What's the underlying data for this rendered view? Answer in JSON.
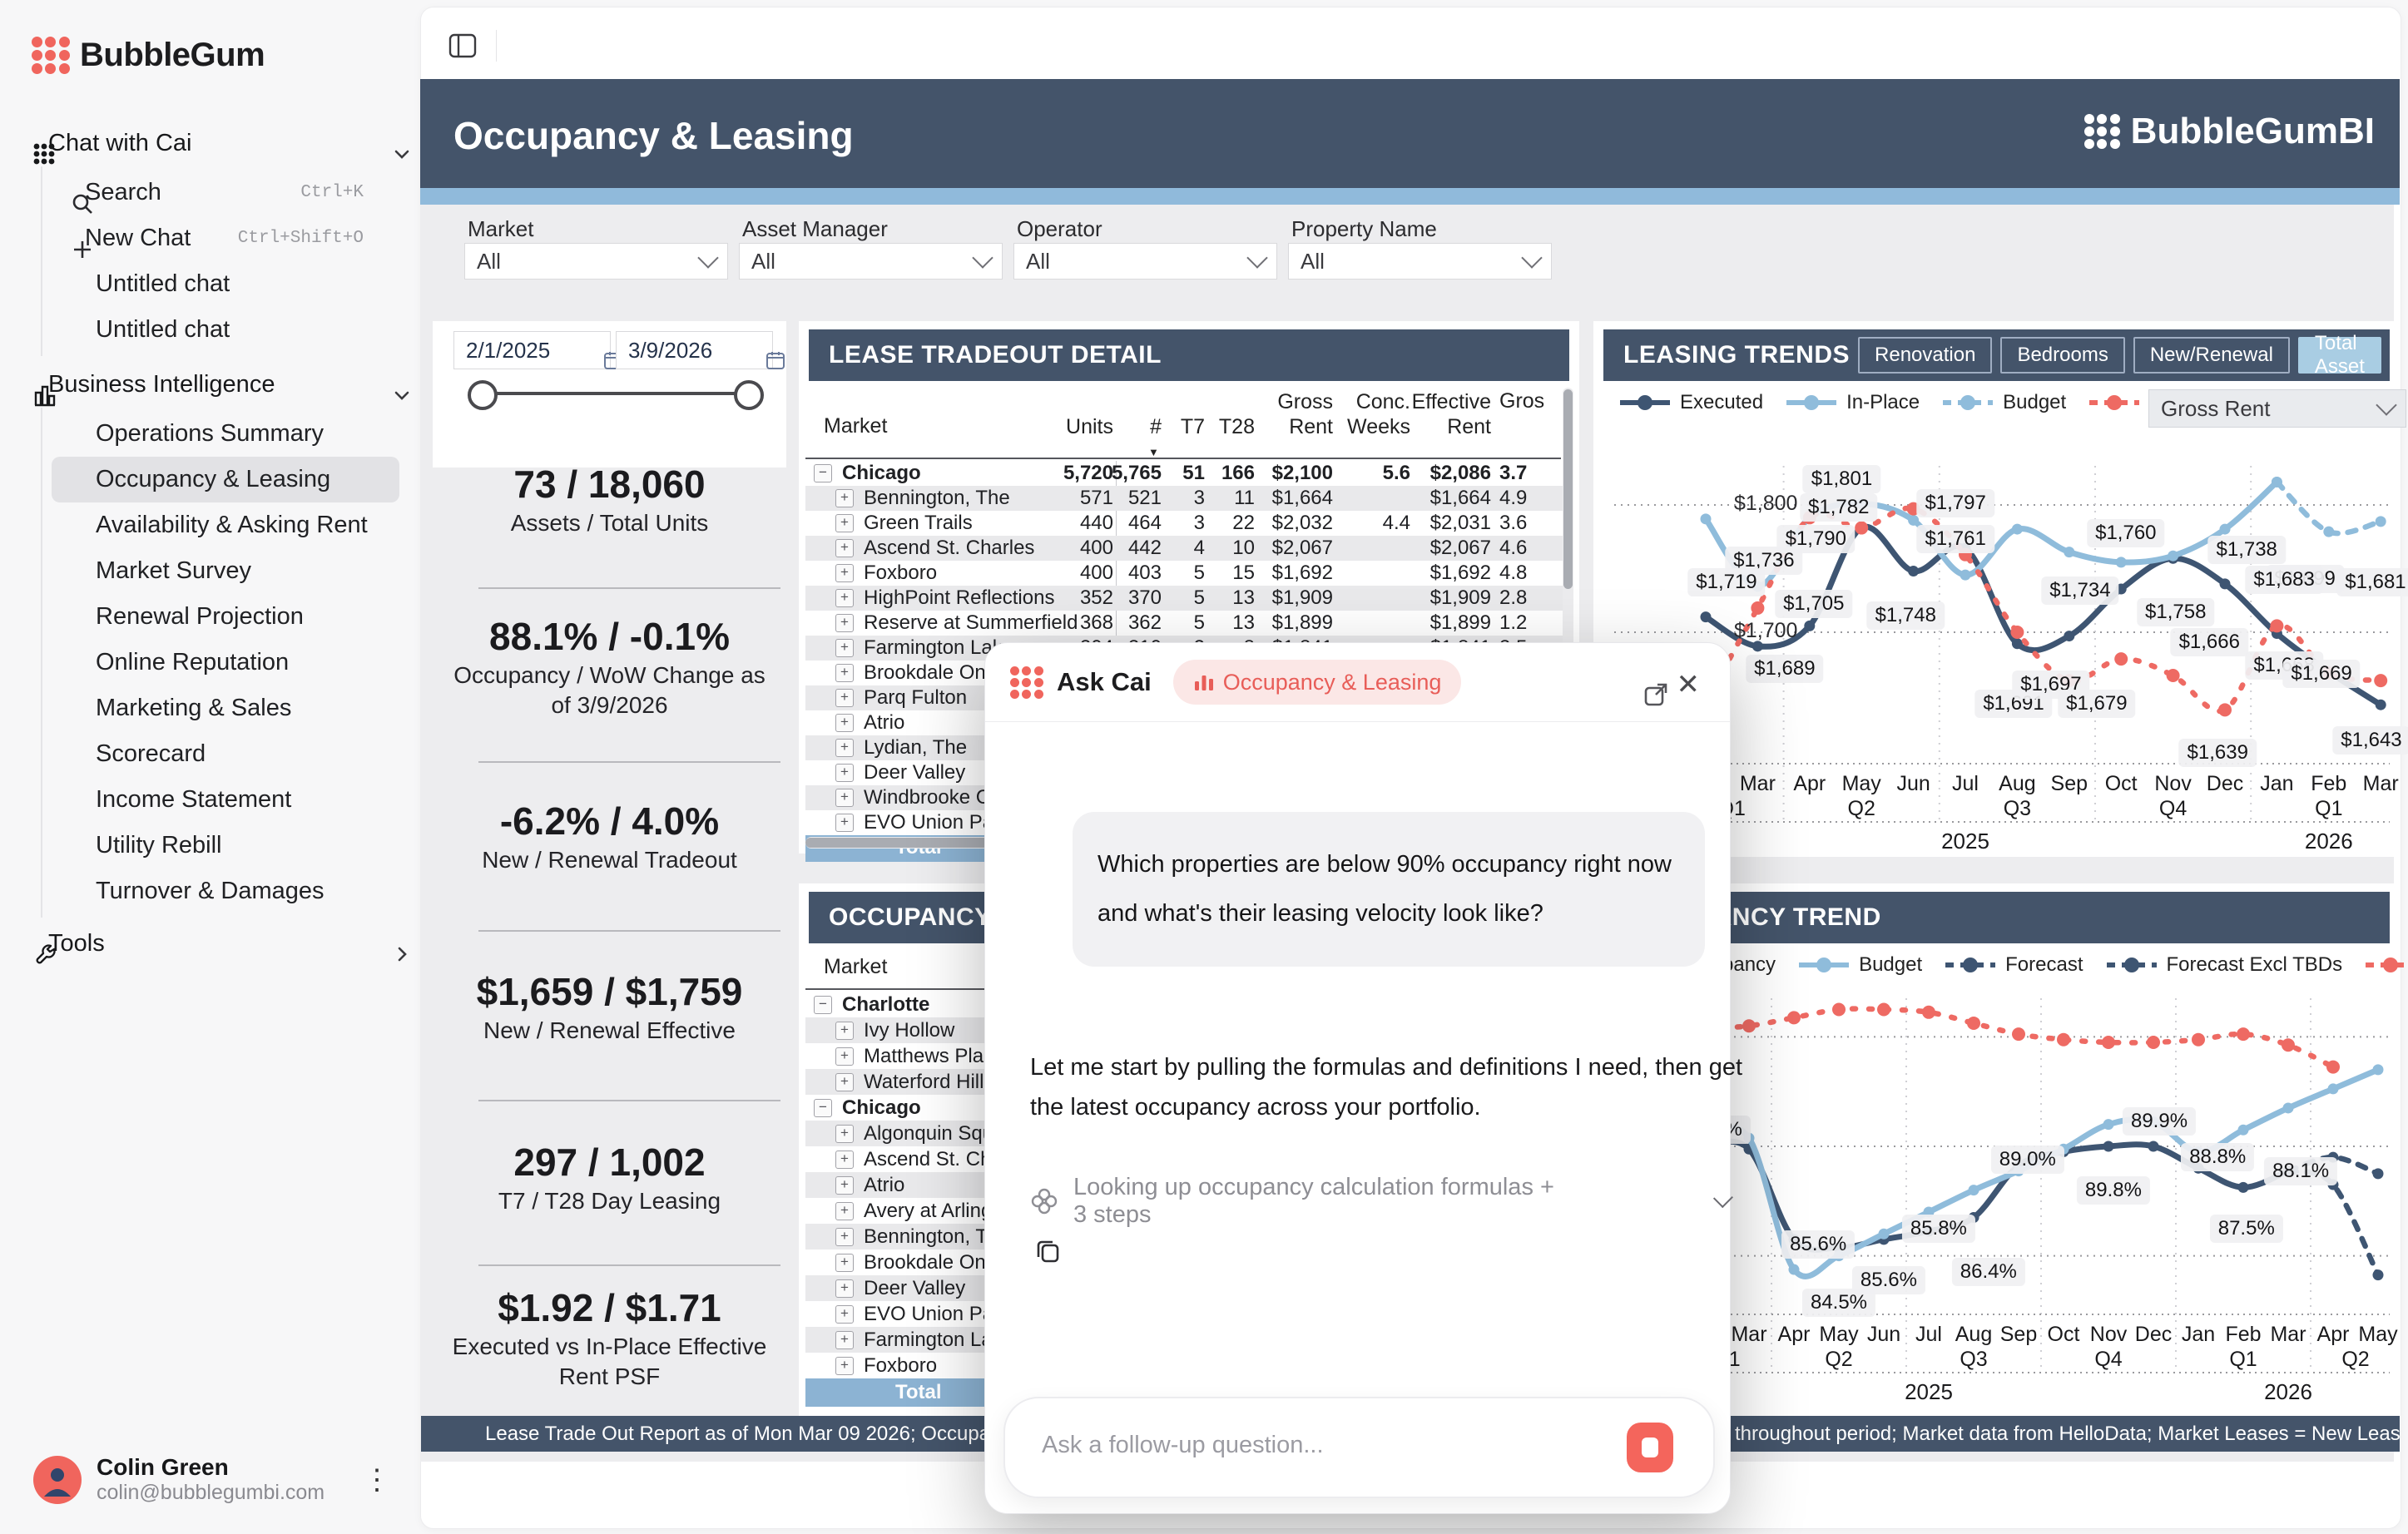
{
  "colors": {
    "navy": "#44546A",
    "navy_line": "#3E5572",
    "light_blue": "#8FBCDB",
    "strip_blue": "#90BADB",
    "red": "#EE6A63",
    "brand_red": "#F0655D",
    "total_row": "#8CB3D3",
    "active_toggle": "#A9CDE3"
  },
  "sidebar": {
    "logo_text": "BubbleGum",
    "sections": [
      {
        "label": "Chat with Cai",
        "icon": "cai-dots-icon",
        "chevron": "down",
        "items": [
          {
            "label": "Search",
            "icon": "search",
            "shortcut": "Ctrl+K"
          },
          {
            "label": "New Chat",
            "icon": "plus",
            "shortcut": "Ctrl+Shift+O"
          },
          {
            "label": "Untitled chat"
          },
          {
            "label": "Untitled chat"
          }
        ]
      },
      {
        "label": "Business Intelligence",
        "icon": "bar-chart-icon",
        "chevron": "down",
        "items": [
          {
            "label": "Operations Summary"
          },
          {
            "label": "Occupancy & Leasing",
            "active": true
          },
          {
            "label": "Availability & Asking Rent"
          },
          {
            "label": "Market Survey"
          },
          {
            "label": "Renewal Projection"
          },
          {
            "label": "Online Reputation"
          },
          {
            "label": "Marketing & Sales"
          },
          {
            "label": "Scorecard"
          },
          {
            "label": "Income Statement"
          },
          {
            "label": "Utility Rebill"
          },
          {
            "label": "Turnover & Damages"
          }
        ]
      },
      {
        "label": "Tools",
        "icon": "wrench-icon",
        "chevron": "right",
        "items": []
      }
    ],
    "user": {
      "name": "Colin Green",
      "email": "colin@bubblegumbi.com"
    }
  },
  "header": {
    "title": "Occupancy & Leasing",
    "brand": "BubbleGumBI"
  },
  "filters": [
    {
      "label": "Market",
      "value": "All"
    },
    {
      "label": "Asset Manager",
      "value": "All"
    },
    {
      "label": "Operator",
      "value": "All"
    },
    {
      "label": "Property Name",
      "value": "All"
    }
  ],
  "kpi_panel": {
    "date_from": "2/1/2025",
    "date_to": "3/9/2026",
    "items": [
      {
        "value": "73 / 18,060",
        "label": "Assets / Total Units"
      },
      {
        "value": "88.1% / -0.1%",
        "label": "Occupancy / WoW Change as of 3/9/2026"
      },
      {
        "value": "-6.2% / 4.0%",
        "label": "New / Renewal Tradeout"
      },
      {
        "value": "$1,659 / $1,759",
        "label": "New / Renewal Effective"
      },
      {
        "value": "297 / 1,002",
        "label": "T7 / T28 Day Leasing"
      },
      {
        "value": "$1.92 / $1.71",
        "label": "Executed vs In-Place Effective Rent PSF"
      }
    ]
  },
  "lease_table": {
    "title": "LEASE TRADEOUT DETAIL",
    "columns": [
      "Market",
      "Units",
      "#",
      "T7",
      "T28",
      "Gross Rent",
      "Conc. Weeks",
      "Effective Rent",
      "Gros"
    ],
    "sort_column": "#",
    "rows": [
      {
        "name": "Chicago",
        "type": "group",
        "cells": [
          "5,720",
          "5,765",
          "51",
          "166",
          "$2,100",
          "5.6",
          "$2,086",
          "3.7"
        ]
      },
      {
        "name": "Bennington, The",
        "cells": [
          "571",
          "521",
          "3",
          "11",
          "$1,664",
          "",
          "$1,664",
          "4.9"
        ]
      },
      {
        "name": "Green Trails",
        "cells": [
          "440",
          "464",
          "3",
          "22",
          "$2,032",
          "4.4",
          "$2,031",
          "3.6"
        ]
      },
      {
        "name": "Ascend St. Charles",
        "cells": [
          "400",
          "442",
          "4",
          "10",
          "$2,067",
          "",
          "$2,067",
          "4.6"
        ]
      },
      {
        "name": "Foxboro",
        "cells": [
          "400",
          "403",
          "5",
          "15",
          "$1,692",
          "",
          "$1,692",
          "4.8"
        ]
      },
      {
        "name": "HighPoint Reflections",
        "cells": [
          "352",
          "370",
          "5",
          "13",
          "$1,909",
          "",
          "$1,909",
          "2.8"
        ]
      },
      {
        "name": "Reserve at Summerfield",
        "cells": [
          "368",
          "362",
          "5",
          "13",
          "$1,899",
          "",
          "$1,899",
          "1.2"
        ]
      },
      {
        "name": "Farmington Lakes",
        "cells": [
          "304",
          "310",
          "2",
          "8",
          "$1,841",
          "",
          "$1,841",
          "3.5"
        ]
      },
      {
        "name": "Brookdale On th",
        "cells": [
          "",
          "",
          "",
          "",
          "",
          "",
          "",
          ""
        ]
      },
      {
        "name": "Parq Fulton",
        "cells": [
          "",
          "",
          "",
          "",
          "",
          "",
          "",
          ""
        ]
      },
      {
        "name": "Atrio",
        "cells": [
          "",
          "",
          "",
          "",
          "",
          "",
          "",
          ""
        ]
      },
      {
        "name": "Lydian, The",
        "cells": [
          "",
          "",
          "",
          "",
          "",
          "",
          "",
          ""
        ]
      },
      {
        "name": "Deer Valley",
        "cells": [
          "",
          "",
          "",
          "",
          "",
          "",
          "",
          ""
        ]
      },
      {
        "name": "Windbrooke Cro",
        "cells": [
          "",
          "",
          "",
          "",
          "",
          "",
          "",
          ""
        ]
      },
      {
        "name": "EVO Union Park",
        "cells": [
          "",
          "",
          "",
          "",
          "",
          "",
          "",
          ""
        ]
      },
      {
        "name": "Total",
        "type": "total",
        "cells": [
          "",
          "",
          "",
          "",
          "",
          "",
          "",
          ""
        ]
      }
    ]
  },
  "occupancy_table": {
    "title": "OCCUPANCY",
    "column_header": "Market",
    "rows": [
      {
        "name": "Charlotte",
        "type": "group"
      },
      {
        "name": "Ivy Hollow"
      },
      {
        "name": "Matthews Place"
      },
      {
        "name": "Waterford Hills"
      },
      {
        "name": "Chicago",
        "type": "group"
      },
      {
        "name": "Algonquin Squa"
      },
      {
        "name": "Ascend St. Cha"
      },
      {
        "name": "Atrio"
      },
      {
        "name": "Avery at Arlingto"
      },
      {
        "name": "Bennington, Th"
      },
      {
        "name": "Brookdale On t"
      },
      {
        "name": "Deer Valley"
      },
      {
        "name": "EVO Union Par"
      },
      {
        "name": "Farmington Lak"
      },
      {
        "name": "Foxboro"
      },
      {
        "name": "Total",
        "type": "total"
      }
    ]
  },
  "chart_data": [
    {
      "type": "line",
      "title": "LEASING TRENDS",
      "toggles": [
        "Renovation",
        "Bedrooms",
        "New/Renewal",
        "Total Asset"
      ],
      "active_toggle": "Total Asset",
      "metric_select": "Gross Rent",
      "legend": [
        {
          "label": "Executed",
          "color": "#3E5572",
          "style": "solid"
        },
        {
          "label": "In-Place",
          "color": "#8FBCDB",
          "style": "solid"
        },
        {
          "label": "Budget",
          "color": "#8FBCDB",
          "style": "dashed"
        },
        {
          "label": "Market",
          "color": "#EE6A63",
          "style": "dashed"
        }
      ],
      "x": [
        "Feb",
        "Mar",
        "Apr",
        "May",
        "Jun",
        "Jul",
        "Aug",
        "Sep",
        "Oct",
        "Nov",
        "Dec",
        "Jan",
        "Feb",
        "Mar"
      ],
      "quarters": [
        {
          "label": "Q1",
          "center_i": 0.5
        },
        {
          "label": "Q2",
          "center_i": 3
        },
        {
          "label": "Q3",
          "center_i": 6
        },
        {
          "label": "Q4",
          "center_i": 9
        },
        {
          "label": "Q1",
          "center_i": 12
        }
      ],
      "quarter_breaks_i": [
        1.5,
        4.5,
        7.5,
        10.5
      ],
      "years": [
        {
          "label": "2025",
          "center_i": 5
        },
        {
          "label": "2026",
          "center_i": 12
        }
      ],
      "ylim": [
        1600,
        1840
      ],
      "grid": true,
      "ylabels": [
        {
          "text": "$1,800",
          "value": 1800
        },
        {
          "text": "$1,700",
          "value": 1700
        }
      ],
      "series": [
        {
          "name": "Executed",
          "color": "#3E5572",
          "style": "solid",
          "values": [
            1712,
            1689,
            1705,
            1782,
            1748,
            1766,
            1691,
            1697,
            1734,
            1758,
            1738,
            1699,
            1669,
            1643
          ]
        },
        {
          "name": "In-Place",
          "color": "#8FBCDB",
          "style": "solid",
          "values": [
            1789,
            1736,
            1790,
            1801,
            1788,
            1745,
            1781,
            1763,
            1755,
            1760,
            1781,
            1818,
            null,
            null
          ]
        },
        {
          "name": "Budget",
          "color": "#8FBCDB",
          "style": "dashed",
          "values": [
            null,
            null,
            null,
            null,
            null,
            null,
            null,
            null,
            null,
            null,
            null,
            1818,
            1779,
            1787
          ]
        },
        {
          "name": "Market",
          "color": "#EE6A63",
          "style": "dashed",
          "values": [
            1645,
            1719,
            1790,
            1782,
            1797,
            1761,
            1700,
            1662,
            1679,
            1666,
            1639,
            1705,
            1668,
            1662
          ]
        }
      ],
      "point_labels": [
        {
          "text": "$1,801",
          "i": 2.62,
          "v": 1820
        },
        {
          "text": "$1,782",
          "i": 2.56,
          "v": 1798
        },
        {
          "text": "$1,797",
          "i": 4.81,
          "v": 1801
        },
        {
          "text": "$1,761",
          "i": 4.81,
          "v": 1773
        },
        {
          "text": "$1,790",
          "i": 2.12,
          "v": 1773
        },
        {
          "text": "$1,736",
          "i": 1.12,
          "v": 1756
        },
        {
          "text": "$1,719",
          "i": 0.4,
          "v": 1739
        },
        {
          "text": "$1,705",
          "i": 2.08,
          "v": 1722
        },
        {
          "text": "$1,748",
          "i": 3.85,
          "v": 1713
        },
        {
          "text": "$1,689",
          "i": 1.52,
          "v": 1671
        },
        {
          "text": "$1,691",
          "i": 5.93,
          "v": 1644
        },
        {
          "text": "$1,697",
          "i": 6.65,
          "v": 1659
        },
        {
          "text": "$1,734",
          "i": 7.21,
          "v": 1733
        },
        {
          "text": "$1,760",
          "i": 8.09,
          "v": 1778
        },
        {
          "text": "$1,758",
          "i": 9.05,
          "v": 1716
        },
        {
          "text": "$1,738",
          "i": 10.42,
          "v": 1765
        },
        {
          "text": "$1,699",
          "i": 11.54,
          "v": 1742
        },
        {
          "text": "$1,683",
          "i": 11.14,
          "v": 1741
        },
        {
          "text": "$1,666",
          "i": 9.7,
          "v": 1692
        },
        {
          "text": "$1,679",
          "i": 7.53,
          "v": 1644
        },
        {
          "text": "$1,639",
          "i": 9.86,
          "v": 1605
        },
        {
          "text": "$1,668",
          "i": 11.14,
          "v": 1674
        },
        {
          "text": "$1,669",
          "i": 11.86,
          "v": 1667
        },
        {
          "text": "$1,681",
          "i": 12.9,
          "v": 1739
        },
        {
          "text": "$1,643",
          "i": 12.82,
          "v": 1615
        }
      ]
    },
    {
      "type": "line",
      "title": "OCCUPANCY TREND",
      "legend": [
        {
          "label": "Occupancy",
          "color": "#3E5572",
          "style": "solid"
        },
        {
          "label": "Budget",
          "color": "#8FBCDB",
          "style": "solid"
        },
        {
          "label": "Forecast",
          "color": "#3E5572",
          "style": "dashed"
        },
        {
          "label": "Forecast Excl TBDs",
          "color": "#3E5572",
          "style": "dashed"
        },
        {
          "label": "Market + Forecast",
          "color": "#EE6A63",
          "style": "dashed"
        }
      ],
      "x": [
        "Feb",
        "Mar",
        "Apr",
        "May",
        "Jun",
        "Jul",
        "Aug",
        "Sep",
        "Oct",
        "Nov",
        "Dec",
        "Jan",
        "Feb",
        "Mar",
        "Apr",
        "May"
      ],
      "quarters": [
        {
          "label": "Q1",
          "center_i": 0.5
        },
        {
          "label": "Q2",
          "center_i": 3
        },
        {
          "label": "Q3",
          "center_i": 6
        },
        {
          "label": "Q4",
          "center_i": 9
        },
        {
          "label": "Q1",
          "center_i": 12
        },
        {
          "label": "Q2",
          "center_i": 14.5
        }
      ],
      "quarter_breaks_i": [
        1.5,
        4.5,
        7.5,
        10.5,
        13.5
      ],
      "years": [
        {
          "label": "2025",
          "center_i": 5
        },
        {
          "label": "2026",
          "center_i": 13
        }
      ],
      "ylim": [
        83,
        95
      ],
      "grid": true,
      "gridline_values": [
        93,
        89,
        85
      ],
      "series": [
        {
          "name": "Occupancy",
          "color": "#3E5572",
          "style": "solid",
          "values": [
            89.0,
            88.9,
            85.6,
            85.3,
            85.6,
            85.9,
            86.4,
            88.3,
            88.8,
            89.0,
            89.0,
            88.2,
            87.5,
            88.1,
            null,
            null
          ]
        },
        {
          "name": "Budget",
          "color": "#8FBCDB",
          "style": "solid",
          "values": [
            89.4,
            89.3,
            84.5,
            85.0,
            85.8,
            86.6,
            87.4,
            88.1,
            88.9,
            89.8,
            89.9,
            88.8,
            89.6,
            90.4,
            91.1,
            91.8
          ]
        },
        {
          "name": "Forecast",
          "color": "#3E5572",
          "style": "dashed",
          "values": [
            null,
            null,
            null,
            null,
            null,
            null,
            null,
            null,
            null,
            null,
            null,
            null,
            null,
            88.1,
            88.6,
            88.0
          ]
        },
        {
          "name": "Forecast Excl TBDs",
          "color": "#3E5572",
          "style": "dashed",
          "values": [
            null,
            null,
            null,
            null,
            null,
            null,
            null,
            null,
            null,
            null,
            null,
            null,
            null,
            88.1,
            87.6,
            84.3
          ]
        },
        {
          "name": "Market + Forecast",
          "color": "#EE6A63",
          "style": "dashed",
          "values": [
            93.3,
            93.4,
            93.7,
            94.0,
            94.0,
            93.9,
            93.5,
            93.1,
            92.9,
            92.8,
            92.8,
            92.9,
            93.1,
            92.7,
            91.9,
            null
          ]
        }
      ],
      "point_labels": [
        {
          "text": "89.3%",
          "i": 0.22,
          "v": 89.6
        },
        {
          "text": "85.6%",
          "i": 2.54,
          "v": 85.4
        },
        {
          "text": "84.5%",
          "i": 3.0,
          "v": 83.3
        },
        {
          "text": "85.6%",
          "i": 4.11,
          "v": 84.1
        },
        {
          "text": "85.8%",
          "i": 5.22,
          "v": 86.0
        },
        {
          "text": "86.4%",
          "i": 6.33,
          "v": 84.4
        },
        {
          "text": "89.0%",
          "i": 7.2,
          "v": 88.5
        },
        {
          "text": "89.8%",
          "i": 9.11,
          "v": 87.4
        },
        {
          "text": "89.9%",
          "i": 10.13,
          "v": 89.9
        },
        {
          "text": "88.8%",
          "i": 11.43,
          "v": 88.6
        },
        {
          "text": "87.5%",
          "i": 12.07,
          "v": 86.0
        },
        {
          "text": "88.1%",
          "i": 13.28,
          "v": 88.1
        }
      ]
    }
  ],
  "dialog": {
    "title": "Ask Cai",
    "context_pill": "Occupancy & Leasing",
    "user_message": "Which properties are below 90% occupancy right now and what's their leasing velocity look like?",
    "assistant_message": "Let me start by pulling the formulas and definitions I need, then get the latest occupancy across your portfolio.",
    "step_text": "Looking up occupancy calculation formulas + 3 steps",
    "input_placeholder": "Ask a follow-up question..."
  },
  "footers": {
    "left": "Lease Trade Out Report as of Mon Mar 09 2026; Occupancy sourc",
    "right": "throughout period; Market data from HelloData; Market Leases = New Lease only."
  }
}
